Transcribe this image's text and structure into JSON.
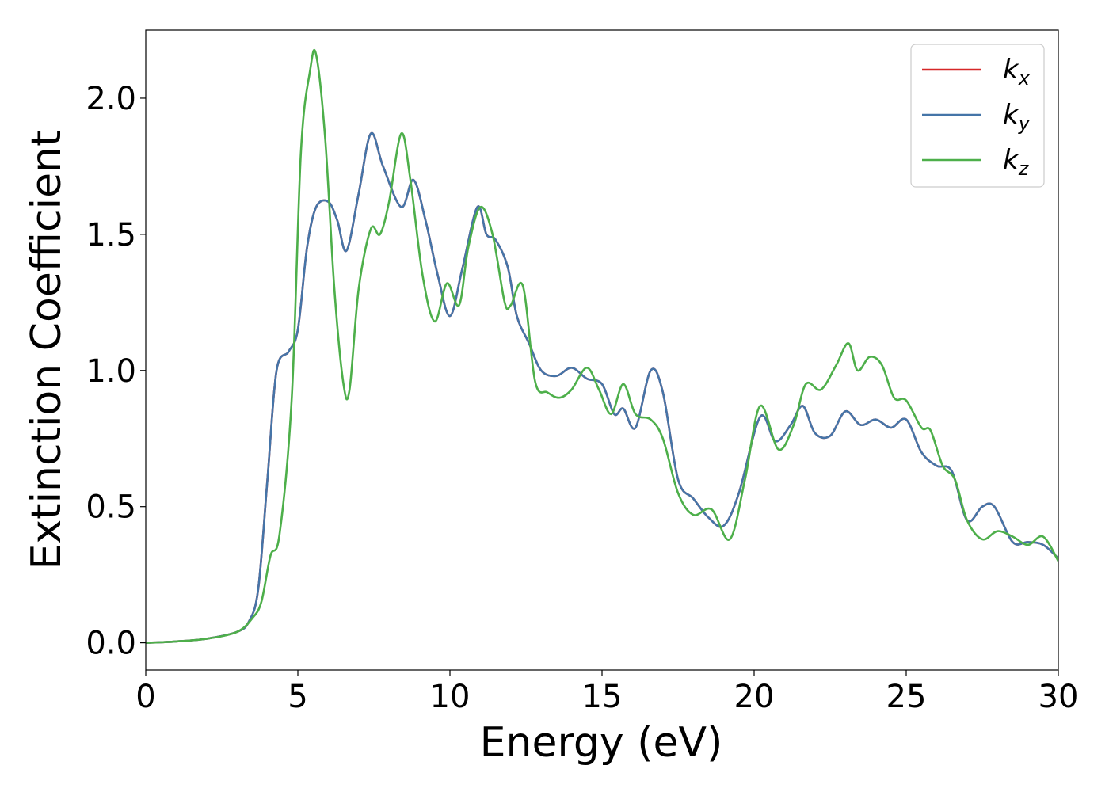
{
  "chart_data": {
    "type": "line",
    "title": "",
    "xlabel": "Energy (eV)",
    "ylabel": "Extinction Coefficient",
    "xlim": [
      0,
      30
    ],
    "ylim": [
      -0.1,
      2.25
    ],
    "xticks": [
      0,
      5,
      10,
      15,
      20,
      25,
      30
    ],
    "xtick_labels": [
      "0",
      "5",
      "10",
      "15",
      "20",
      "25",
      "30"
    ],
    "yticks": [
      0.0,
      0.5,
      1.0,
      1.5,
      2.0
    ],
    "ytick_labels": [
      "0.0",
      "0.5",
      "1.0",
      "1.5",
      "2.0"
    ],
    "grid": false,
    "legend_position": "top-right",
    "series": [
      {
        "name": "k_x",
        "label_base": "k",
        "label_sub": "x",
        "color": "#d62728",
        "x": [
          0,
          1,
          2,
          3,
          3.4,
          3.7,
          4.0,
          4.3,
          4.7,
          5.0,
          5.3,
          5.6,
          6.0,
          6.3,
          6.6,
          7.0,
          7.4,
          7.8,
          8.4,
          8.8,
          9.2,
          9.6,
          10.0,
          10.4,
          10.9,
          11.2,
          11.5,
          11.9,
          12.2,
          12.6,
          13.0,
          13.5,
          14.0,
          14.5,
          15.0,
          15.4,
          15.7,
          16.1,
          16.6,
          17.0,
          17.5,
          18.0,
          18.5,
          19.0,
          19.5,
          20.2,
          20.7,
          21.2,
          21.6,
          22.0,
          22.5,
          23.0,
          23.5,
          24.0,
          24.5,
          25.0,
          25.5,
          26.0,
          26.5,
          27.0,
          27.5,
          27.9,
          28.5,
          29.0,
          29.5,
          30.0
        ],
        "y": [
          0.0,
          0.005,
          0.015,
          0.04,
          0.08,
          0.2,
          0.6,
          1.0,
          1.07,
          1.15,
          1.45,
          1.6,
          1.62,
          1.55,
          1.44,
          1.65,
          1.87,
          1.75,
          1.6,
          1.7,
          1.55,
          1.35,
          1.2,
          1.37,
          1.6,
          1.5,
          1.48,
          1.38,
          1.2,
          1.1,
          1.0,
          0.98,
          1.01,
          0.97,
          0.95,
          0.84,
          0.86,
          0.79,
          1.0,
          0.92,
          0.6,
          0.53,
          0.46,
          0.43,
          0.55,
          0.83,
          0.74,
          0.8,
          0.87,
          0.77,
          0.76,
          0.85,
          0.8,
          0.82,
          0.79,
          0.82,
          0.7,
          0.65,
          0.63,
          0.45,
          0.5,
          0.5,
          0.37,
          0.37,
          0.36,
          0.31
        ]
      },
      {
        "name": "k_y",
        "label_base": "k",
        "label_sub": "y",
        "color": "#4575a8",
        "x": [
          0,
          1,
          2,
          3,
          3.4,
          3.7,
          4.0,
          4.3,
          4.7,
          5.0,
          5.3,
          5.6,
          6.0,
          6.3,
          6.6,
          7.0,
          7.4,
          7.8,
          8.4,
          8.8,
          9.2,
          9.6,
          10.0,
          10.4,
          10.9,
          11.2,
          11.5,
          11.9,
          12.2,
          12.6,
          13.0,
          13.5,
          14.0,
          14.5,
          15.0,
          15.4,
          15.7,
          16.1,
          16.6,
          17.0,
          17.5,
          18.0,
          18.5,
          19.0,
          19.5,
          20.2,
          20.7,
          21.2,
          21.6,
          22.0,
          22.5,
          23.0,
          23.5,
          24.0,
          24.5,
          25.0,
          25.5,
          26.0,
          26.5,
          27.0,
          27.5,
          27.9,
          28.5,
          29.0,
          29.5,
          30.0
        ],
        "y": [
          0.0,
          0.005,
          0.015,
          0.04,
          0.08,
          0.2,
          0.6,
          1.0,
          1.07,
          1.15,
          1.45,
          1.6,
          1.62,
          1.55,
          1.44,
          1.65,
          1.87,
          1.75,
          1.6,
          1.7,
          1.55,
          1.35,
          1.2,
          1.37,
          1.6,
          1.5,
          1.48,
          1.38,
          1.2,
          1.1,
          1.0,
          0.98,
          1.01,
          0.97,
          0.95,
          0.84,
          0.86,
          0.79,
          1.0,
          0.92,
          0.6,
          0.53,
          0.46,
          0.43,
          0.55,
          0.83,
          0.74,
          0.8,
          0.87,
          0.77,
          0.76,
          0.85,
          0.8,
          0.82,
          0.79,
          0.82,
          0.7,
          0.65,
          0.63,
          0.45,
          0.5,
          0.5,
          0.37,
          0.37,
          0.36,
          0.31
        ]
      },
      {
        "name": "k_z",
        "label_base": "k",
        "label_sub": "z",
        "color": "#4daf4a",
        "x": [
          0,
          1,
          2,
          3,
          3.5,
          3.8,
          4.1,
          4.4,
          4.8,
          5.1,
          5.4,
          5.6,
          5.9,
          6.2,
          6.5,
          6.7,
          7.0,
          7.4,
          7.7,
          8.0,
          8.4,
          8.7,
          9.1,
          9.5,
          9.9,
          10.3,
          10.6,
          11.0,
          11.4,
          11.8,
          12.0,
          12.4,
          12.8,
          13.2,
          13.6,
          14.0,
          14.5,
          14.9,
          15.3,
          15.7,
          16.1,
          16.6,
          17.0,
          17.5,
          18.0,
          18.6,
          19.2,
          19.7,
          20.2,
          20.8,
          21.3,
          21.7,
          22.2,
          22.7,
          23.1,
          23.4,
          23.8,
          24.2,
          24.6,
          25.0,
          25.5,
          25.8,
          26.2,
          26.6,
          27.0,
          27.5,
          28.0,
          28.5,
          29.0,
          29.5,
          30.0
        ],
        "y": [
          0.0,
          0.005,
          0.015,
          0.04,
          0.09,
          0.15,
          0.32,
          0.4,
          0.9,
          1.8,
          2.1,
          2.16,
          1.85,
          1.3,
          0.95,
          0.93,
          1.3,
          1.52,
          1.5,
          1.62,
          1.87,
          1.7,
          1.35,
          1.18,
          1.32,
          1.24,
          1.45,
          1.6,
          1.5,
          1.25,
          1.24,
          1.31,
          0.96,
          0.92,
          0.9,
          0.93,
          1.01,
          0.93,
          0.84,
          0.95,
          0.84,
          0.82,
          0.75,
          0.55,
          0.47,
          0.49,
          0.38,
          0.6,
          0.87,
          0.71,
          0.8,
          0.95,
          0.93,
          1.02,
          1.1,
          1.0,
          1.05,
          1.02,
          0.9,
          0.89,
          0.79,
          0.78,
          0.65,
          0.6,
          0.45,
          0.38,
          0.41,
          0.39,
          0.36,
          0.39,
          0.3
        ]
      }
    ]
  }
}
